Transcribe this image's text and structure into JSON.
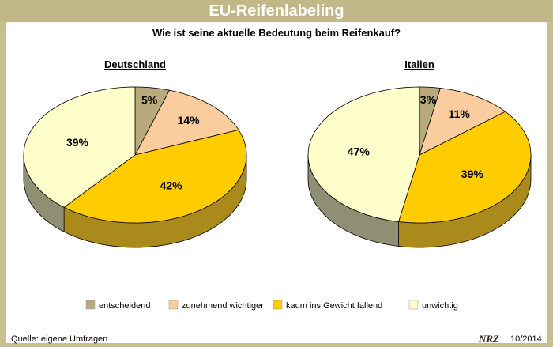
{
  "page": {
    "title": "EU-Reifenlabeling",
    "subtitle": "Wie ist seine aktuelle Bedeutung beim Reifenkauf?",
    "source": "Quelle: eigene Umfragen",
    "logo_text": "NRZ",
    "date": "10/2014"
  },
  "chart_data": {
    "type": "pie",
    "title": "Wie ist seine aktuelle Bedeutung beim Reifenkauf?",
    "unit": "%",
    "categories": [
      "entscheidend",
      "zunehmend wichtiger",
      "kaum ins Gewicht fallend",
      "unwichtig"
    ],
    "colors": [
      "#b8aa7c",
      "#fbcc9d",
      "#ffcc00",
      "#ffffcc"
    ],
    "side_colors": [
      "#8a8064",
      "#c99f74",
      "#a98a1a",
      "#8f8f73"
    ],
    "series": [
      {
        "name": "Deutschland",
        "values": [
          5,
          14,
          42,
          39
        ],
        "labels": [
          "5%",
          "14%",
          "42%",
          "39%"
        ]
      },
      {
        "name": "Italien",
        "values": [
          3,
          11,
          39,
          47
        ],
        "labels": [
          "3%",
          "11%",
          "39%",
          "47%"
        ]
      }
    ],
    "legend_position": "bottom"
  }
}
